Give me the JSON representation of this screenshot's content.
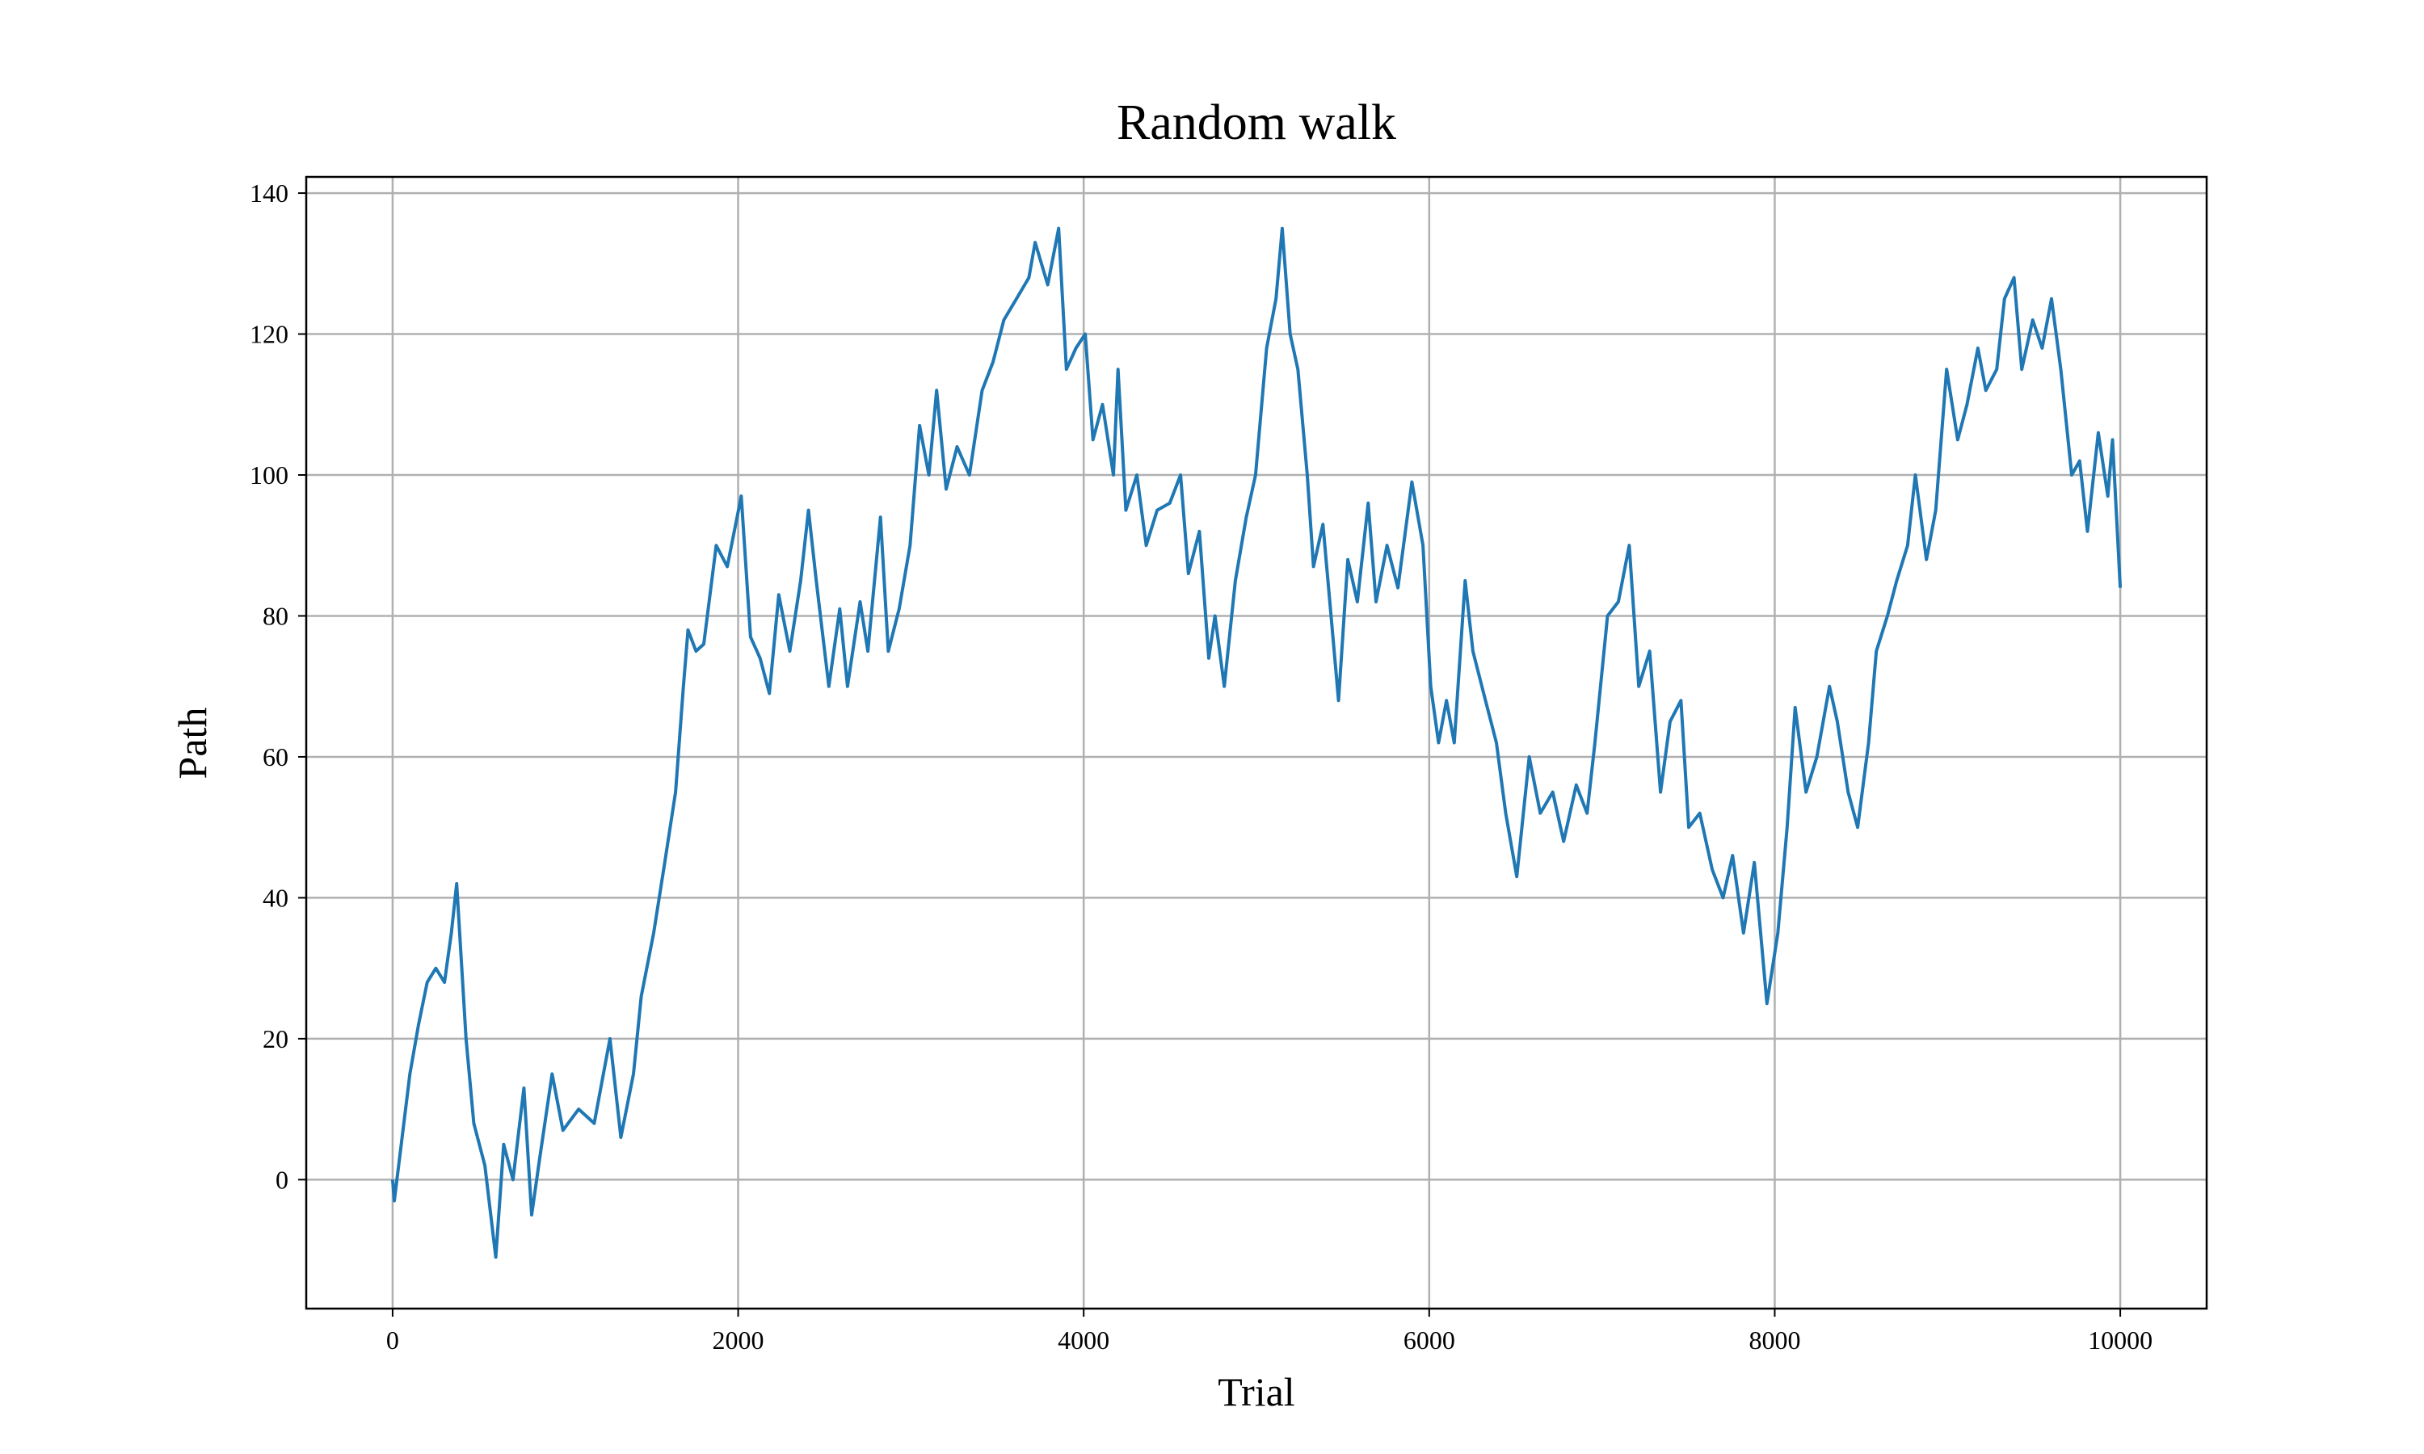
{
  "chart_data": {
    "type": "line",
    "title": "Random walk",
    "x_label": "Trial",
    "y_label": "Path",
    "x": [
      0,
      10,
      50,
      100,
      150,
      200,
      250,
      300,
      340,
      371,
      425,
      470,
      534,
      597,
      643,
      697,
      760,
      805,
      851,
      923,
      986,
      1077,
      1167,
      1258,
      1321,
      1394,
      1439,
      1511,
      1575,
      1638,
      1683,
      1710,
      1756,
      1801,
      1873,
      1937,
      2018,
      2072,
      2127,
      2181,
      2235,
      2299,
      2362,
      2407,
      2452,
      2525,
      2588,
      2633,
      2706,
      2751,
      2824,
      2869,
      2932,
      2995,
      3050,
      3104,
      3149,
      3204,
      3267,
      3339,
      3412,
      3475,
      3538,
      3611,
      3683,
      3719,
      3792,
      3855,
      3900,
      3955,
      4009,
      4054,
      4109,
      4172,
      4199,
      4244,
      4308,
      4362,
      4425,
      4498,
      4561,
      4606,
      4670,
      4724,
      4760,
      4814,
      4878,
      4941,
      4995,
      5059,
      5113,
      5149,
      5195,
      5240,
      5294,
      5330,
      5385,
      5439,
      5475,
      5529,
      5584,
      5647,
      5692,
      5756,
      5819,
      5900,
      5964,
      6009,
      6054,
      6100,
      6145,
      6208,
      6253,
      6326,
      6389,
      6443,
      6507,
      6579,
      6643,
      6715,
      6778,
      6851,
      6914,
      6959,
      7032,
      7095,
      7158,
      7213,
      7276,
      7339,
      7394,
      7457,
      7502,
      7566,
      7638,
      7701,
      7756,
      7819,
      7882,
      7955,
      8018,
      8072,
      8118,
      8181,
      8244,
      8317,
      8362,
      8425,
      8480,
      8543,
      8588,
      8652,
      8706,
      8769,
      8814,
      8878,
      8932,
      8995,
      9059,
      9113,
      9176,
      9222,
      9285,
      9330,
      9385,
      9430,
      9493,
      9548,
      9602,
      9656,
      9719,
      9765,
      9810,
      9873,
      9928,
      9955,
      10000
    ],
    "series": [
      {
        "name": "Path",
        "color": "#1f77b4",
        "values": [
          0,
          -3,
          5,
          15,
          22,
          28,
          30,
          28,
          35,
          42,
          20,
          8,
          2,
          -11,
          5,
          0,
          13,
          -5,
          3,
          15,
          7,
          10,
          8,
          20,
          6,
          15,
          26,
          35,
          45,
          55,
          70,
          78,
          75,
          76,
          90,
          87,
          97,
          77,
          74,
          69,
          83,
          75,
          85,
          95,
          85,
          70,
          81,
          70,
          82,
          75,
          94,
          75,
          81,
          90,
          107,
          100,
          112,
          98,
          104,
          100,
          112,
          116,
          122,
          125,
          128,
          133,
          127,
          135,
          115,
          118,
          120,
          105,
          110,
          100,
          115,
          95,
          100,
          90,
          95,
          96,
          100,
          86,
          92,
          74,
          80,
          70,
          85,
          94,
          100,
          118,
          125,
          135,
          120,
          115,
          100,
          87,
          93,
          78,
          68,
          88,
          82,
          96,
          82,
          90,
          84,
          99,
          90,
          70,
          62,
          68,
          62,
          85,
          75,
          68,
          62,
          52,
          43,
          60,
          52,
          55,
          48,
          56,
          52,
          62,
          80,
          82,
          90,
          70,
          75,
          55,
          65,
          68,
          50,
          52,
          44,
          40,
          46,
          35,
          45,
          25,
          35,
          50,
          67,
          55,
          60,
          70,
          65,
          55,
          50,
          62,
          75,
          80,
          85,
          90,
          100,
          88,
          95,
          115,
          105,
          110,
          118,
          112,
          115,
          125,
          128,
          115,
          122,
          118,
          125,
          115,
          100,
          102,
          92,
          106,
          97,
          105,
          84
        ]
      }
    ],
    "xlim": [
      -500,
      10500
    ],
    "ylim": [
      -18.3,
      142.3
    ],
    "xticks": [
      0,
      2000,
      4000,
      6000,
      8000,
      10000
    ],
    "yticks": [
      0,
      20,
      40,
      60,
      80,
      100,
      120,
      140
    ],
    "grid": true
  }
}
